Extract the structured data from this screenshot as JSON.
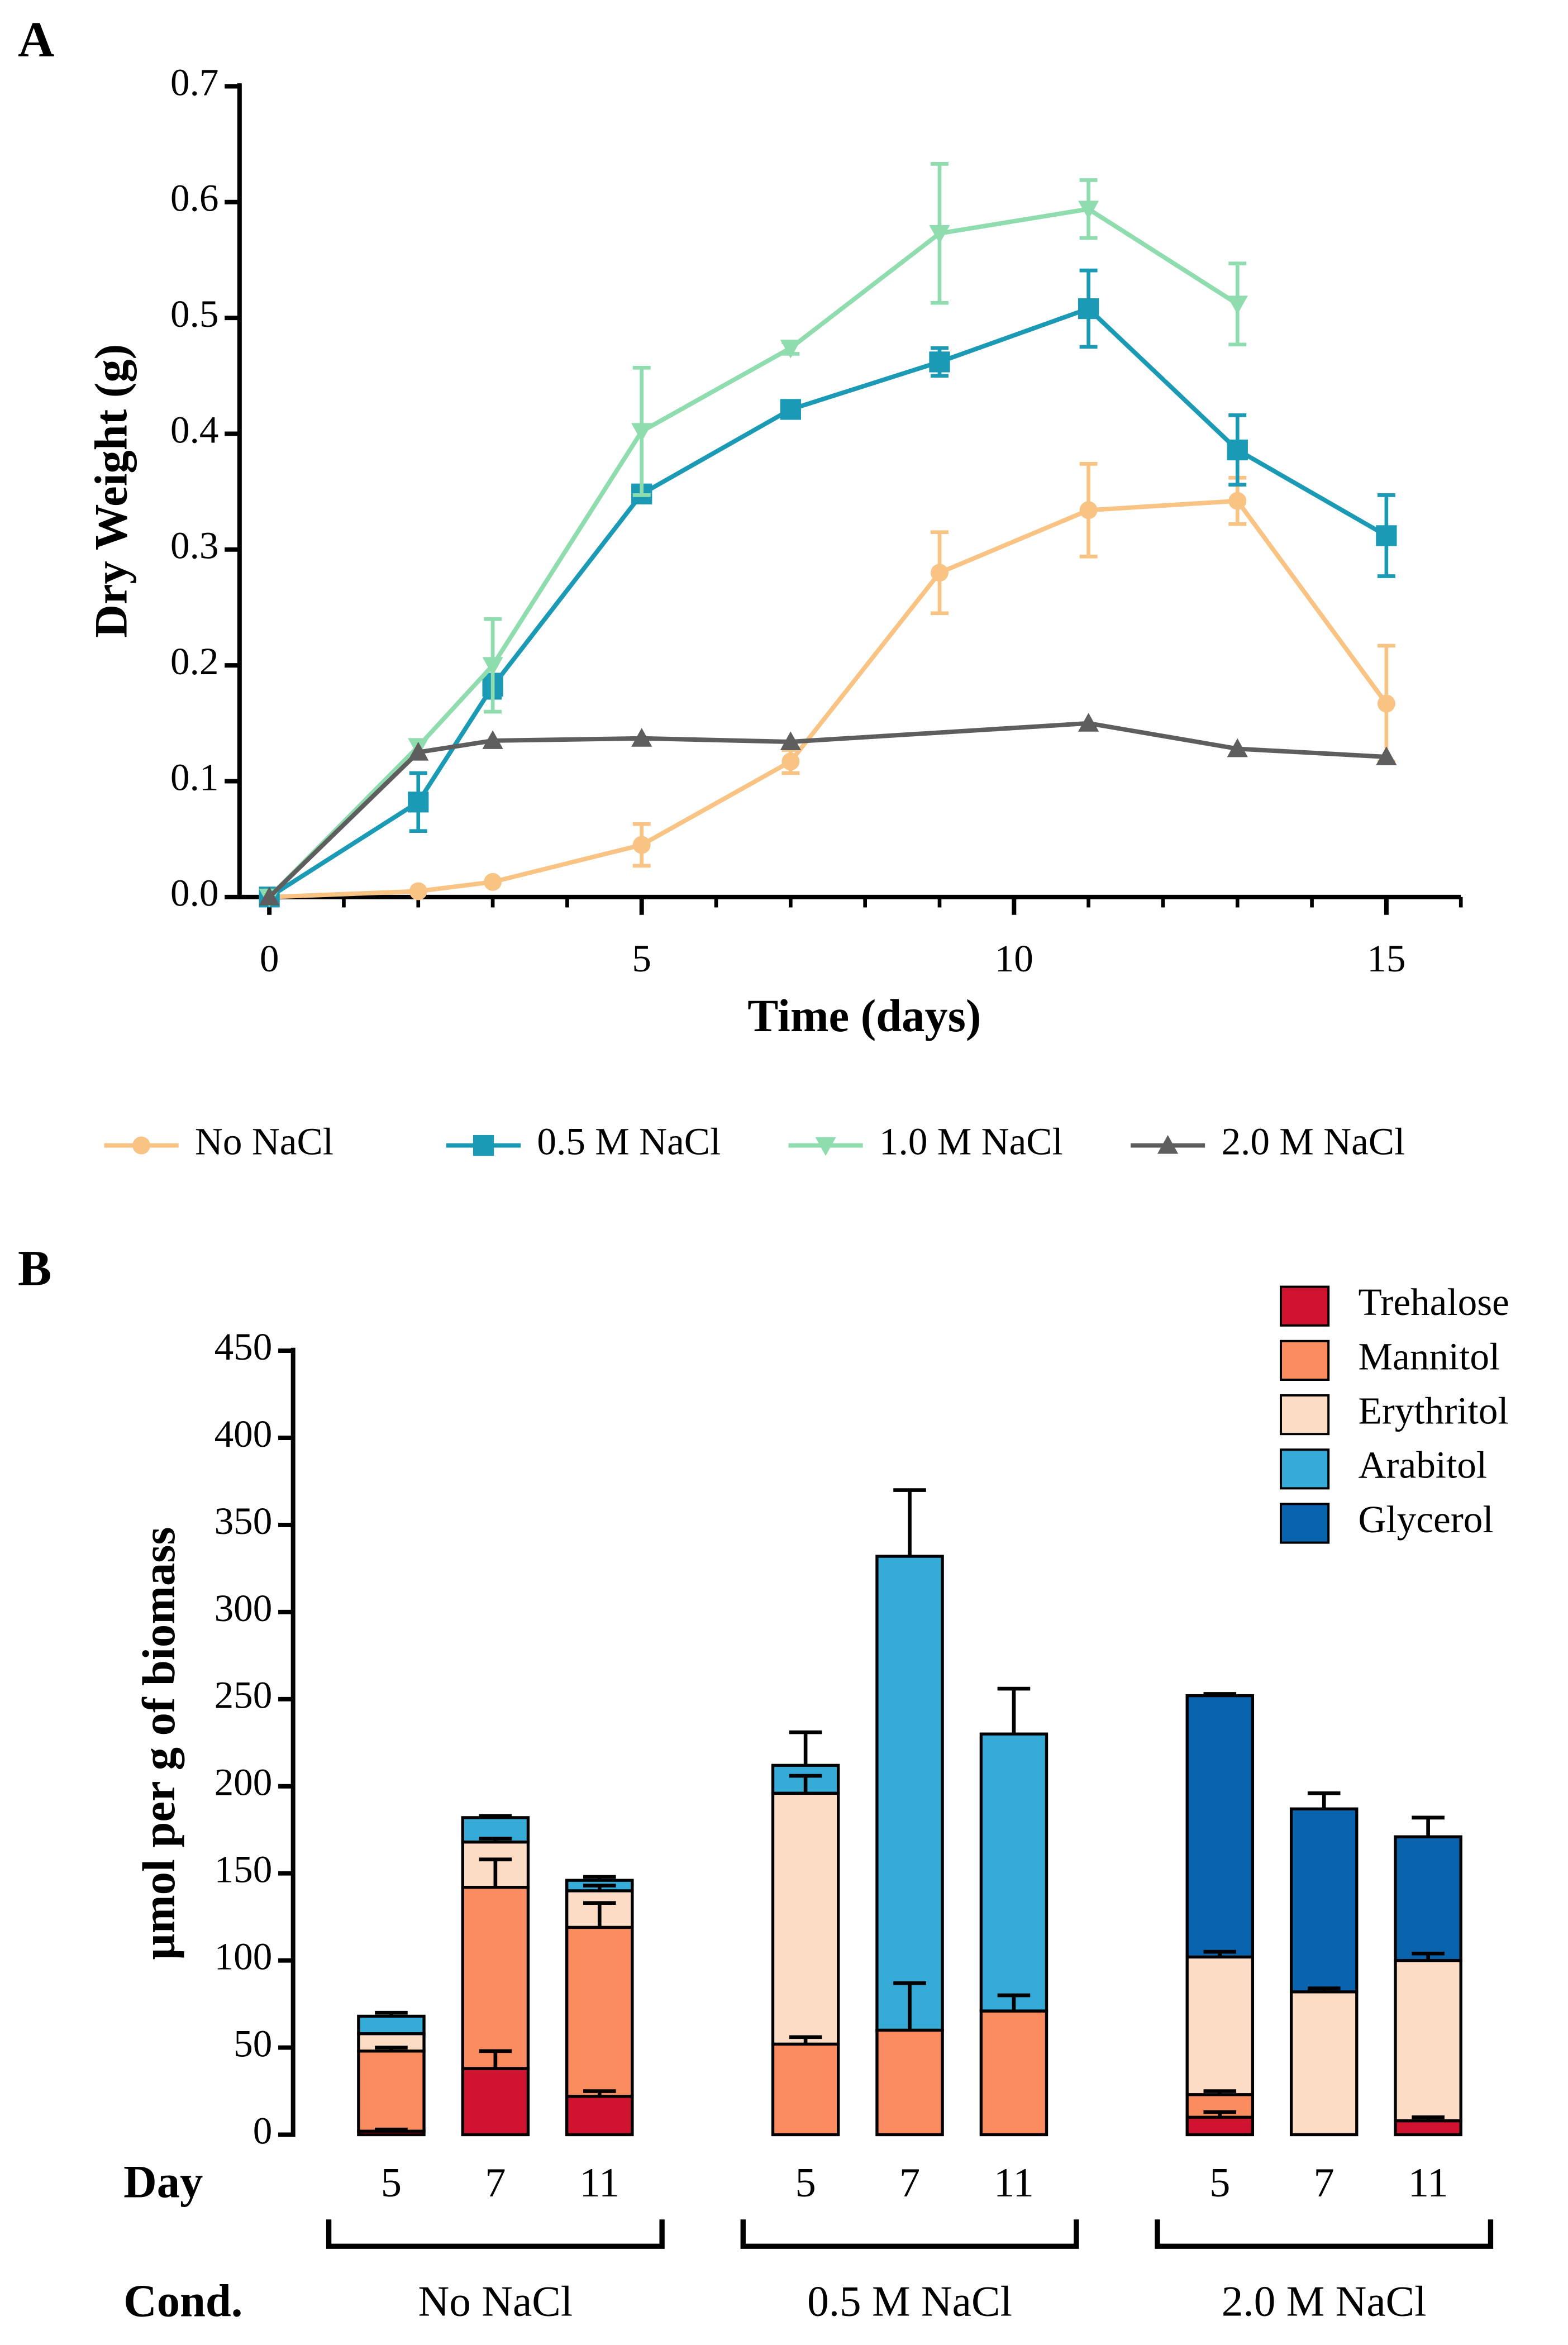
{
  "chart_data": [
    {
      "type": "line",
      "panel": "A",
      "xlabel": "Time (days)",
      "ylabel": "Dry Weight (g)",
      "xlim": [
        -0.4,
        16
      ],
      "xticks": [
        0,
        5,
        10,
        15
      ],
      "xminorticks": [
        1,
        2,
        3,
        4,
        6,
        7,
        8,
        9,
        11,
        12,
        13,
        14,
        16
      ],
      "ylim": [
        0,
        0.7
      ],
      "yticks": [
        {
          "value": 0,
          "label": "0.0"
        },
        0.1,
        0.2,
        0.3,
        0.4,
        0.5,
        0.6,
        0.7
      ],
      "legend": "bottom",
      "series": [
        {
          "name": "No NaCl",
          "color": "#f9c383",
          "marker": "circle",
          "x": [
            0,
            2,
            3,
            5,
            7,
            9,
            11,
            13,
            15
          ],
          "values": [
            0,
            0.005,
            0.013,
            0.045,
            0.117,
            0.28,
            0.334,
            0.342,
            0.167
          ],
          "errors": [
            0,
            0,
            0,
            0.018,
            0.01,
            0.035,
            0.04,
            0.02,
            0.05
          ]
        },
        {
          "name": "0.5 M NaCl",
          "color": "#1b9ab5",
          "marker": "square",
          "x": [
            0,
            2,
            3,
            5,
            7,
            9,
            11,
            13,
            15
          ],
          "values": [
            0,
            0.082,
            0.182,
            0.348,
            0.421,
            0.462,
            0.508,
            0.386,
            0.312
          ],
          "errors": [
            0,
            0.025,
            0.01,
            0.005,
            0.005,
            0.012,
            0.033,
            0.03,
            0.035
          ]
        },
        {
          "name": "1.0 M NaCl",
          "color": "#8fdcae",
          "marker": "triangle-down",
          "x": [
            0,
            2,
            3,
            5,
            7,
            9,
            11,
            13
          ],
          "values": [
            0,
            0.13,
            0.2,
            0.402,
            0.474,
            0.573,
            0.594,
            0.512
          ],
          "errors": [
            0,
            0,
            0.04,
            0.055,
            0.005,
            0.06,
            0.025,
            0.035
          ]
        },
        {
          "name": "2.0 M NaCl",
          "color": "#5e5e5e",
          "marker": "triangle-up",
          "x": [
            0,
            2,
            3,
            5,
            7,
            11,
            13,
            15
          ],
          "values": [
            0,
            0.125,
            0.135,
            0.137,
            0.134,
            0.15,
            0.128,
            0.121
          ],
          "errors": [
            0,
            0,
            0,
            0,
            0,
            0,
            0,
            0
          ]
        }
      ]
    },
    {
      "type": "stacked-bar",
      "panel": "B",
      "ylabel": "µmol per g of biomass",
      "ylim": [
        0,
        450
      ],
      "yticks": [
        0,
        50,
        100,
        150,
        200,
        250,
        300,
        350,
        400,
        450
      ],
      "day_label": "Day",
      "cond_label": "Cond.",
      "groups": [
        {
          "name": "No NaCl",
          "days": [
            "5",
            "7",
            "11"
          ]
        },
        {
          "name": "0.5 M NaCl",
          "days": [
            "5",
            "7",
            "11"
          ]
        },
        {
          "name": "2.0 M NaCl",
          "days": [
            "5",
            "7",
            "11"
          ]
        }
      ],
      "legend": "upper right",
      "series": [
        {
          "name": "Trehalose",
          "color": "#d0132f",
          "values": [
            2,
            38,
            22,
            0,
            0,
            0,
            10,
            0,
            8
          ],
          "errors": [
            1,
            10,
            3,
            null,
            null,
            null,
            3,
            null,
            2
          ]
        },
        {
          "name": "Mannitol",
          "color": "#fa8c5f",
          "values": [
            46,
            104,
            97,
            52,
            60,
            71,
            13,
            0,
            0
          ],
          "errors": [
            2,
            16,
            14,
            4,
            27,
            9,
            2,
            null,
            null
          ]
        },
        {
          "name": "Erythritol",
          "color": "#fddcc6",
          "values": [
            10,
            26,
            21,
            144,
            0,
            0,
            79,
            82,
            92
          ],
          "errors": [
            null,
            2,
            3,
            10,
            null,
            null,
            3,
            2,
            4
          ]
        },
        {
          "name": "Arabitol",
          "color": "#36abd7",
          "values": [
            10,
            14,
            6,
            16,
            272,
            159,
            0,
            0,
            0
          ],
          "errors": [
            2,
            1,
            2,
            19,
            38,
            26,
            null,
            null,
            null
          ]
        },
        {
          "name": "Glycerol",
          "color": "#0a64ad",
          "values": [
            0,
            0,
            0,
            0,
            0,
            0,
            150,
            105,
            71
          ],
          "errors": [
            null,
            null,
            null,
            null,
            null,
            null,
            1,
            9,
            11
          ]
        }
      ]
    }
  ]
}
